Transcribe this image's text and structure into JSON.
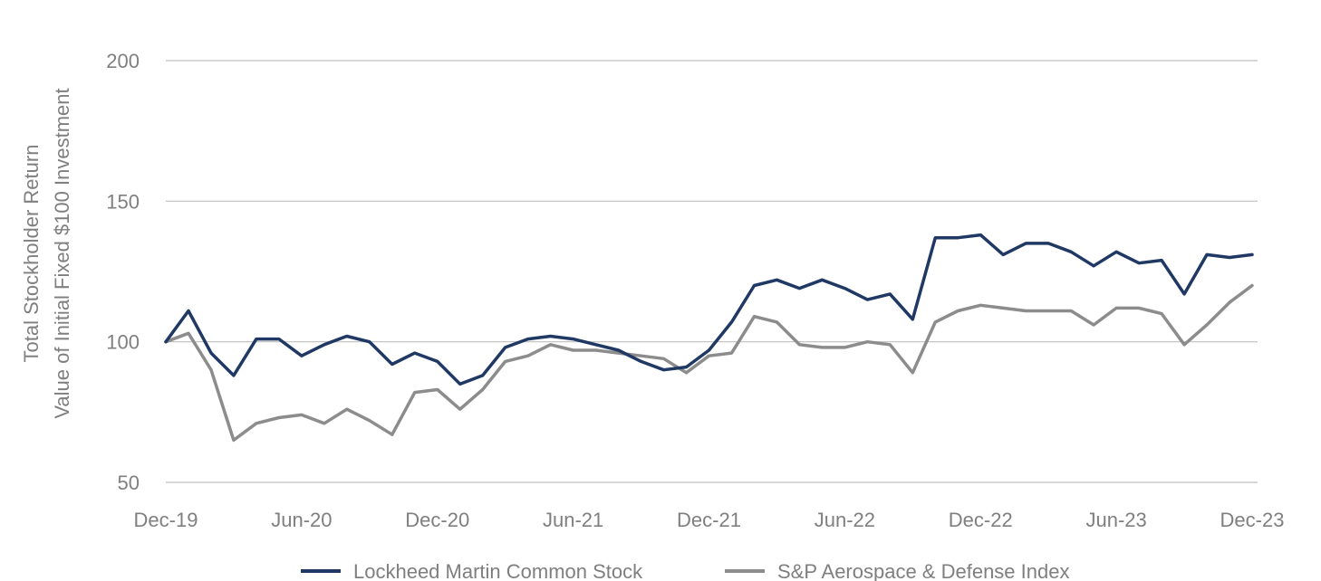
{
  "chart_data": {
    "type": "line",
    "title": "",
    "ylabel_lines": [
      "Total Stockholder Return",
      "Value of Initial Fixed $100 Investment"
    ],
    "xlabel": "",
    "ylim": [
      50,
      200
    ],
    "yticks": [
      50,
      100,
      150,
      200
    ],
    "grid": true,
    "legend_position": "bottom",
    "xtick_labels": [
      {
        "label": "Dec-19",
        "index": 0
      },
      {
        "label": "Jun-20",
        "index": 6
      },
      {
        "label": "Dec-20",
        "index": 12
      },
      {
        "label": "Jun-21",
        "index": 18
      },
      {
        "label": "Dec-21",
        "index": 24
      },
      {
        "label": "Jun-22",
        "index": 30
      },
      {
        "label": "Dec-22",
        "index": 36
      },
      {
        "label": "Jun-23",
        "index": 42
      },
      {
        "label": "Dec-23",
        "index": 48
      }
    ],
    "series": [
      {
        "name": "Lockheed Martin Common Stock",
        "color": "#1f3864",
        "values": [
          100,
          111,
          96,
          88,
          101,
          101,
          95,
          99,
          102,
          100,
          92,
          96,
          93,
          85,
          88,
          98,
          101,
          102,
          101,
          99,
          97,
          93,
          90,
          91,
          97,
          107,
          120,
          122,
          119,
          122,
          119,
          115,
          117,
          108,
          137,
          137,
          138,
          131,
          135,
          135,
          132,
          127,
          132,
          128,
          129,
          117,
          131,
          130,
          131
        ]
      },
      {
        "name": "S&P Aerospace & Defense Index",
        "color": "#8c8c8c",
        "values": [
          100,
          103,
          90,
          65,
          71,
          73,
          74,
          71,
          76,
          72,
          67,
          82,
          83,
          76,
          83,
          93,
          95,
          99,
          97,
          97,
          96,
          95,
          94,
          89,
          95,
          96,
          109,
          107,
          99,
          98,
          98,
          100,
          99,
          89,
          107,
          111,
          113,
          112,
          111,
          111,
          111,
          106,
          112,
          112,
          110,
          99,
          106,
          114,
          120
        ]
      }
    ]
  }
}
